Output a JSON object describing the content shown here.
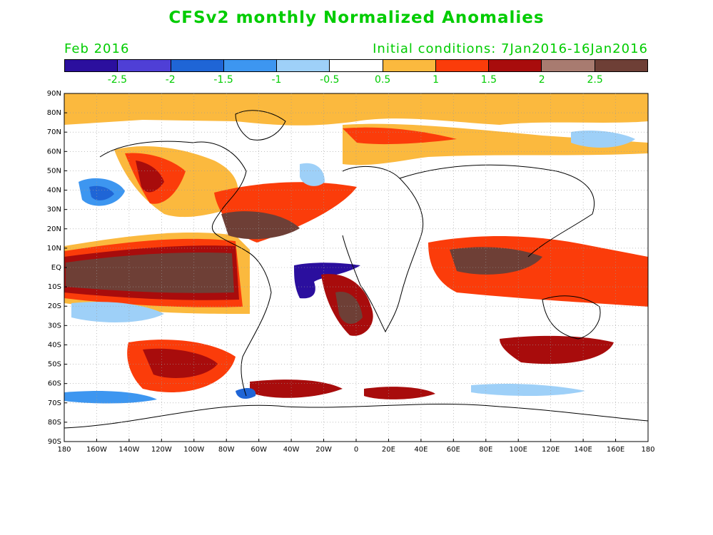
{
  "title": "CFSv2 monthly Normalized Anomalies",
  "subtitle_left": "Feb 2016",
  "subtitle_right": "Initial conditions: 7Jan2016-16Jan2016",
  "colorbar": {
    "colors": [
      "#2b0f9e",
      "#4f3fd6",
      "#1f65d6",
      "#3d96f0",
      "#9ed0f8",
      "#ffffff",
      "#fbb93e",
      "#fb3c0a",
      "#a80c0c",
      "#a87b70",
      "#6e3f36"
    ],
    "tick_labels": [
      "-2.5",
      "-2",
      "-1.5",
      "-1",
      "-0.5",
      "0.5",
      "1",
      "1.5",
      "2",
      "2.5"
    ]
  },
  "map": {
    "lat_labels": [
      "90N",
      "80N",
      "70N",
      "60N",
      "50N",
      "40N",
      "30N",
      "20N",
      "10N",
      "EQ",
      "10S",
      "20S",
      "30S",
      "40S",
      "50S",
      "60S",
      "70S",
      "80S",
      "90S"
    ],
    "lon_labels": [
      "180",
      "160W",
      "140W",
      "120W",
      "100W",
      "80W",
      "60W",
      "40W",
      "20W",
      "0",
      "20E",
      "40E",
      "60E",
      "80E",
      "100E",
      "120E",
      "140E",
      "160E",
      "180"
    ]
  }
}
